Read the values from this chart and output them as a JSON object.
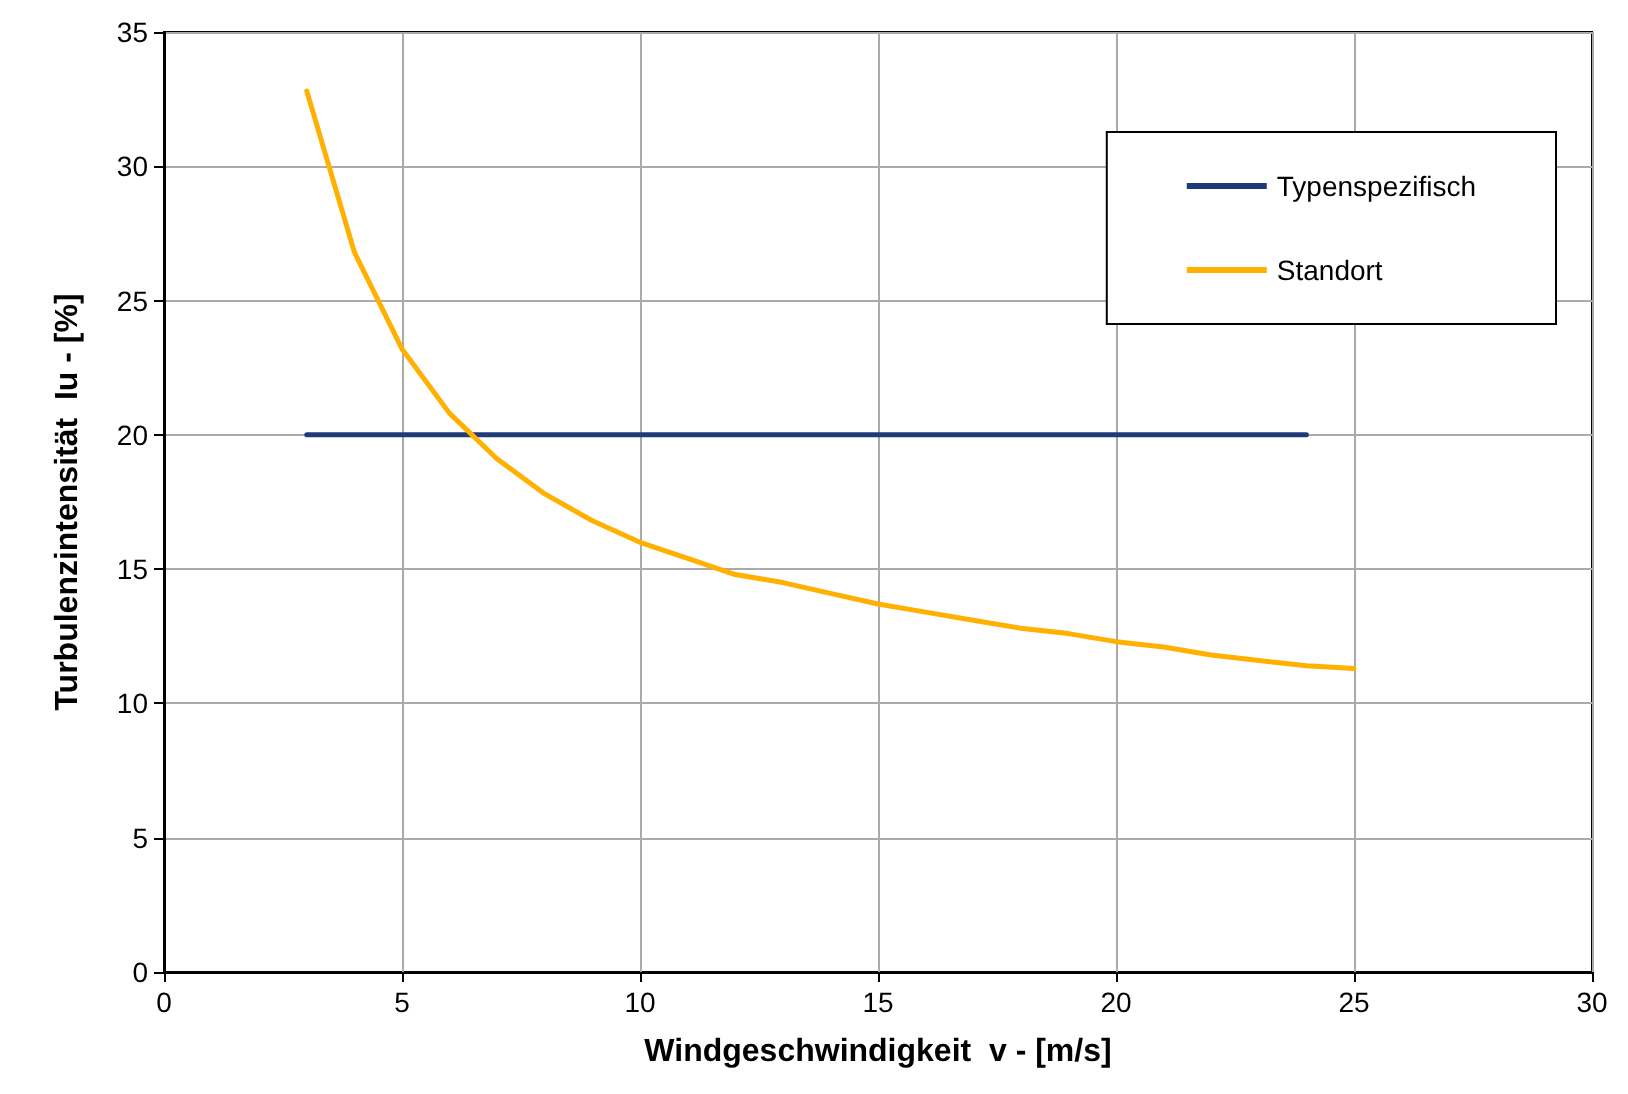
{
  "chart_data": {
    "type": "line",
    "xlabel": "Windgeschwindigkeit  v - [m/s]",
    "ylabel": "Turbulenzintensität  Iu - [%]",
    "xlim": [
      0,
      30
    ],
    "xticks": [
      0,
      5,
      10,
      15,
      20,
      25,
      30
    ],
    "ylim": [
      0,
      35
    ],
    "yticks": [
      0,
      5,
      10,
      15,
      20,
      25,
      30,
      35
    ],
    "grid": true,
    "legend": "top right",
    "marker": "none",
    "line_style": "solid",
    "series": [
      {
        "name": "Typenspezifisch",
        "color": "#1f3a78",
        "x": [
          3,
          24
        ],
        "values": [
          20,
          20
        ]
      },
      {
        "name": "Standort",
        "color": "#ffb000",
        "x": [
          3,
          4,
          5,
          6,
          7,
          8,
          9,
          10,
          11,
          12,
          13,
          14,
          15,
          16,
          17,
          18,
          19,
          20,
          21,
          22,
          23,
          24,
          25
        ],
        "values": [
          32.8,
          26.8,
          23.2,
          20.8,
          19.1,
          17.8,
          16.8,
          16.0,
          15.4,
          14.8,
          14.5,
          14.1,
          13.7,
          13.4,
          13.1,
          12.8,
          12.6,
          12.3,
          12.1,
          11.8,
          11.6,
          11.4,
          11.3
        ]
      }
    ]
  }
}
